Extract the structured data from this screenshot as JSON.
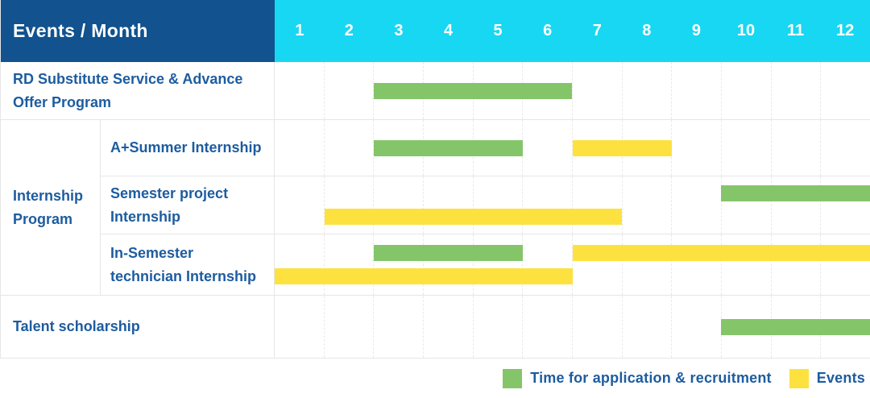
{
  "header": {
    "title": "Events / Month",
    "months": [
      "1",
      "2",
      "3",
      "4",
      "5",
      "6",
      "7",
      "8",
      "9",
      "10",
      "11",
      "12"
    ]
  },
  "chart_data": {
    "type": "gantt",
    "title": "Events / Month",
    "x_unit": "month",
    "x_range": [
      1,
      12
    ],
    "x_ticks": [
      "1",
      "2",
      "3",
      "4",
      "5",
      "6",
      "7",
      "8",
      "9",
      "10",
      "11",
      "12"
    ],
    "grid": "dashed-vertical-month-lines",
    "legend_position": "bottom-right",
    "series_legend": [
      {
        "key": "application",
        "label": "Time for application & recruitment",
        "color": "#85c56a"
      },
      {
        "key": "event",
        "label": "Events",
        "color": "#fde23f"
      }
    ],
    "rows": [
      {
        "group": "",
        "label": "RD Substitute Service & Advance Offer Program",
        "lines": [
          [
            {
              "series": "application",
              "start_month": 3,
              "end_month": 6
            }
          ]
        ]
      },
      {
        "group": "Internship Program",
        "label": "A+Summer Internship",
        "lines": [
          [
            {
              "series": "application",
              "start_month": 3,
              "end_month": 5
            },
            {
              "series": "event",
              "start_month": 7,
              "end_month": 8
            }
          ]
        ]
      },
      {
        "group": "Internship Program",
        "label": "Semester project Internship",
        "lines": [
          [
            {
              "series": "application",
              "start_month": 10,
              "end_month": 12
            }
          ],
          [
            {
              "series": "event",
              "start_month": 2,
              "end_month": 7
            }
          ]
        ]
      },
      {
        "group": "Internship Program",
        "label": "In-Semester technician Internship",
        "lines": [
          [
            {
              "series": "application",
              "start_month": 3,
              "end_month": 5
            },
            {
              "series": "event",
              "start_month": 7,
              "end_month": 12
            }
          ],
          [
            {
              "series": "event",
              "start_month": 1,
              "end_month": 6
            }
          ]
        ]
      },
      {
        "group": "",
        "label": "Talent scholarship",
        "lines": [
          [
            {
              "series": "application",
              "start_month": 10,
              "end_month": 12
            }
          ]
        ]
      }
    ]
  },
  "colors": {
    "header_bg": "#11528f",
    "months_bg": "#18d7f2",
    "header_text": "#ffffff",
    "label_text": "#1d5c9f",
    "bar_green": "#85c56a",
    "bar_yellow": "#fde23f",
    "row_border": "#e6e6e6",
    "month_gridline": "#e9e9e9"
  }
}
